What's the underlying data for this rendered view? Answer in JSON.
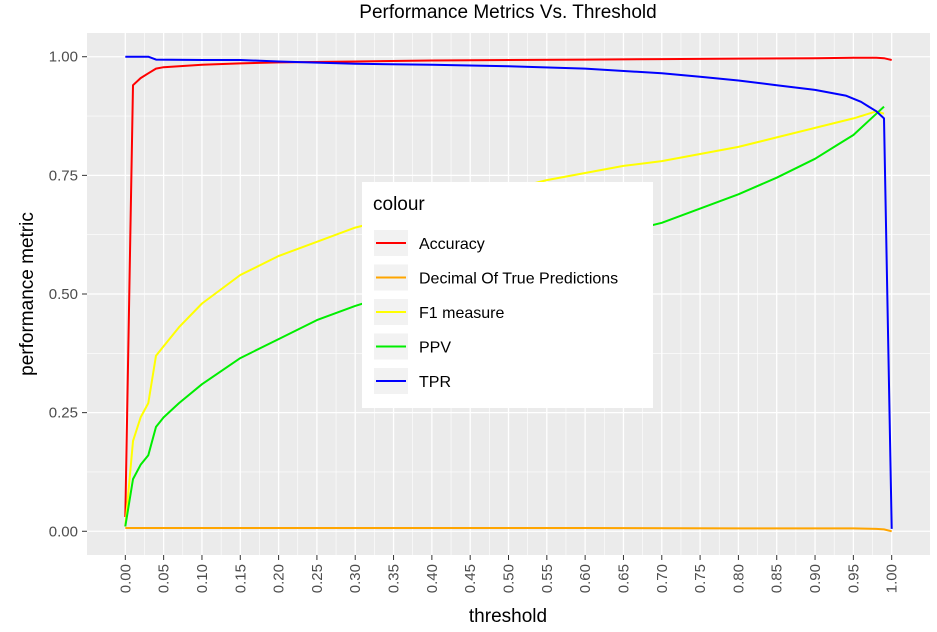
{
  "chart_data": {
    "type": "line",
    "title": "Performance Metrics Vs. Threshold",
    "xlabel": "threshold",
    "ylabel": "performance metric",
    "xlim": [
      -0.05,
      1.05
    ],
    "ylim": [
      -0.05,
      1.05
    ],
    "x_ticks": [
      "0.00",
      "0.05",
      "0.10",
      "0.15",
      "0.20",
      "0.25",
      "0.30",
      "0.35",
      "0.40",
      "0.45",
      "0.50",
      "0.55",
      "0.60",
      "0.65",
      "0.70",
      "0.75",
      "0.80",
      "0.85",
      "0.90",
      "0.95",
      "1.00"
    ],
    "y_ticks": [
      "0.00",
      "0.25",
      "0.50",
      "0.75",
      "1.00"
    ],
    "grid": true,
    "legend": {
      "title": "colour",
      "placement": "center"
    },
    "series": [
      {
        "name": "Accuracy",
        "color": "#ff0000",
        "x": [
          0.0,
          0.01,
          0.02,
          0.03,
          0.04,
          0.05,
          0.1,
          0.15,
          0.2,
          0.3,
          0.4,
          0.5,
          0.6,
          0.7,
          0.8,
          0.9,
          0.95,
          0.98,
          0.99,
          1.0
        ],
        "y": [
          0.03,
          0.94,
          0.955,
          0.965,
          0.975,
          0.978,
          0.983,
          0.986,
          0.988,
          0.99,
          0.992,
          0.993,
          0.994,
          0.995,
          0.996,
          0.997,
          0.998,
          0.998,
          0.997,
          0.993
        ]
      },
      {
        "name": "Decimal Of True Predictions",
        "color": "#ffa500",
        "x": [
          0.0,
          0.2,
          0.4,
          0.6,
          0.8,
          0.95,
          0.98,
          0.99,
          1.0
        ],
        "y": [
          0.007,
          0.007,
          0.007,
          0.007,
          0.006,
          0.006,
          0.005,
          0.004,
          0.0
        ]
      },
      {
        "name": "F1 measure",
        "color": "#ffff00",
        "x": [
          0.0,
          0.01,
          0.02,
          0.03,
          0.04,
          0.05,
          0.07,
          0.1,
          0.15,
          0.2,
          0.25,
          0.3,
          0.35,
          0.4,
          0.5,
          0.55,
          0.6,
          0.65,
          0.7,
          0.75,
          0.8,
          0.85,
          0.9,
          0.95,
          0.98,
          0.99
        ],
        "y": [
          0.01,
          0.19,
          0.24,
          0.27,
          0.37,
          0.39,
          0.43,
          0.48,
          0.54,
          0.58,
          0.61,
          0.64,
          0.66,
          0.68,
          0.72,
          0.74,
          0.755,
          0.77,
          0.78,
          0.795,
          0.81,
          0.83,
          0.85,
          0.87,
          0.885,
          0.88
        ]
      },
      {
        "name": "PPV",
        "color": "#00ee00",
        "x": [
          0.0,
          0.01,
          0.02,
          0.03,
          0.04,
          0.05,
          0.07,
          0.1,
          0.15,
          0.2,
          0.25,
          0.3,
          0.35,
          0.4,
          0.5,
          0.6,
          0.65,
          0.7,
          0.75,
          0.8,
          0.85,
          0.9,
          0.93,
          0.95,
          0.97,
          0.98,
          0.99
        ],
        "y": [
          0.01,
          0.11,
          0.14,
          0.16,
          0.22,
          0.24,
          0.27,
          0.31,
          0.365,
          0.405,
          0.445,
          0.475,
          0.5,
          0.53,
          0.57,
          0.61,
          0.63,
          0.65,
          0.68,
          0.71,
          0.745,
          0.785,
          0.815,
          0.835,
          0.865,
          0.88,
          0.895
        ]
      },
      {
        "name": "TPR",
        "color": "#0000ff",
        "x": [
          0.0,
          0.03,
          0.04,
          0.1,
          0.15,
          0.2,
          0.3,
          0.4,
          0.5,
          0.6,
          0.7,
          0.75,
          0.8,
          0.85,
          0.9,
          0.94,
          0.96,
          0.97,
          0.98,
          0.99,
          1.0
        ],
        "y": [
          1.0,
          1.0,
          0.994,
          0.993,
          0.993,
          0.99,
          0.985,
          0.983,
          0.98,
          0.975,
          0.965,
          0.958,
          0.95,
          0.94,
          0.93,
          0.918,
          0.905,
          0.895,
          0.885,
          0.87,
          0.005
        ]
      }
    ]
  }
}
